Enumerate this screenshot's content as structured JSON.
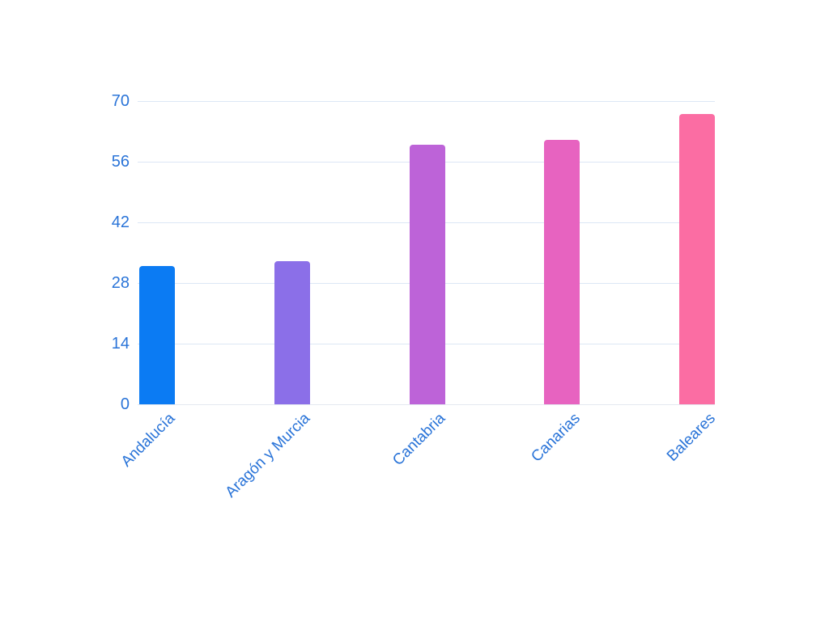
{
  "chart_data": {
    "type": "bar",
    "title": "",
    "xlabel": "",
    "ylabel": "",
    "categories": [
      "Andalucía",
      "Aragón y Murcia",
      "Cantabria",
      "Canarias",
      "Baleares"
    ],
    "values": [
      32,
      33,
      60,
      61,
      67
    ],
    "bar_colors": [
      "#0b7bf3",
      "#8b6fe8",
      "#bd63d8",
      "#e763c0",
      "#fb6da3"
    ],
    "yticks": [
      0,
      14,
      28,
      42,
      56,
      70
    ],
    "ylim": [
      0,
      70
    ],
    "grid": true,
    "legend": false,
    "axis_label_color": "#2a74d8",
    "gridline_color": "#dce7f5",
    "baseline_color": "#e4e9f0",
    "background_color": "#ffffff"
  }
}
